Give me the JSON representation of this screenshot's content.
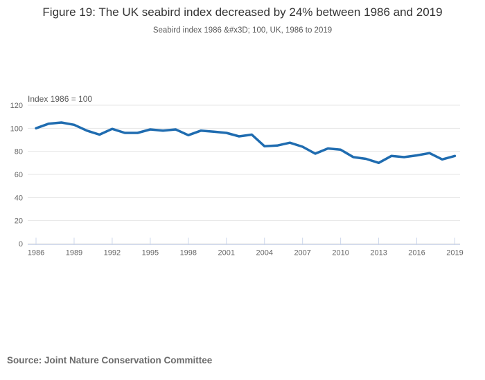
{
  "header": {
    "title": "Figure 19: The UK seabird index decreased by 24% between 1986 and 2019",
    "subtitle": "Seabird index 1986 &#x3D; 100, UK, 1986 to 2019"
  },
  "footer": {
    "source": "Source: Joint Nature Conservation Committee"
  },
  "chart_data": {
    "type": "line",
    "title": "Figure 19: The UK seabird index decreased by 24% between 1986 and 2019",
    "subtitle": "Seabird index 1986 &#x3D; 100, UK, 1986 to 2019",
    "axis_label": "Index 1986 = 100",
    "x": [
      1986,
      1987,
      1988,
      1989,
      1990,
      1991,
      1992,
      1993,
      1994,
      1995,
      1996,
      1997,
      1998,
      1999,
      2000,
      2001,
      2002,
      2003,
      2004,
      2005,
      2006,
      2007,
      2008,
      2009,
      2010,
      2011,
      2012,
      2013,
      2014,
      2015,
      2016,
      2017,
      2018,
      2019
    ],
    "values": [
      100,
      104,
      105,
      103,
      98,
      94.5,
      99.5,
      96,
      96,
      99,
      98,
      99,
      94,
      98,
      97,
      96,
      93,
      94.5,
      84.5,
      85,
      87.5,
      84,
      78,
      82.5,
      81.5,
      75,
      73.5,
      70,
      76,
      75,
      76.5,
      78.5,
      73,
      76
    ],
    "x_ticks": [
      1986,
      1989,
      1992,
      1995,
      1998,
      2001,
      2004,
      2007,
      2010,
      2013,
      2016,
      2019
    ],
    "y_ticks": [
      0,
      20,
      40,
      60,
      80,
      100,
      120
    ],
    "ylim": [
      0,
      120
    ],
    "grid": "horizontal",
    "legend": "none",
    "colors": {
      "line": "#1f6cb0",
      "grid": "#e6e6e6",
      "axis": "#ccd6eb",
      "tick_label": "#666666"
    }
  }
}
